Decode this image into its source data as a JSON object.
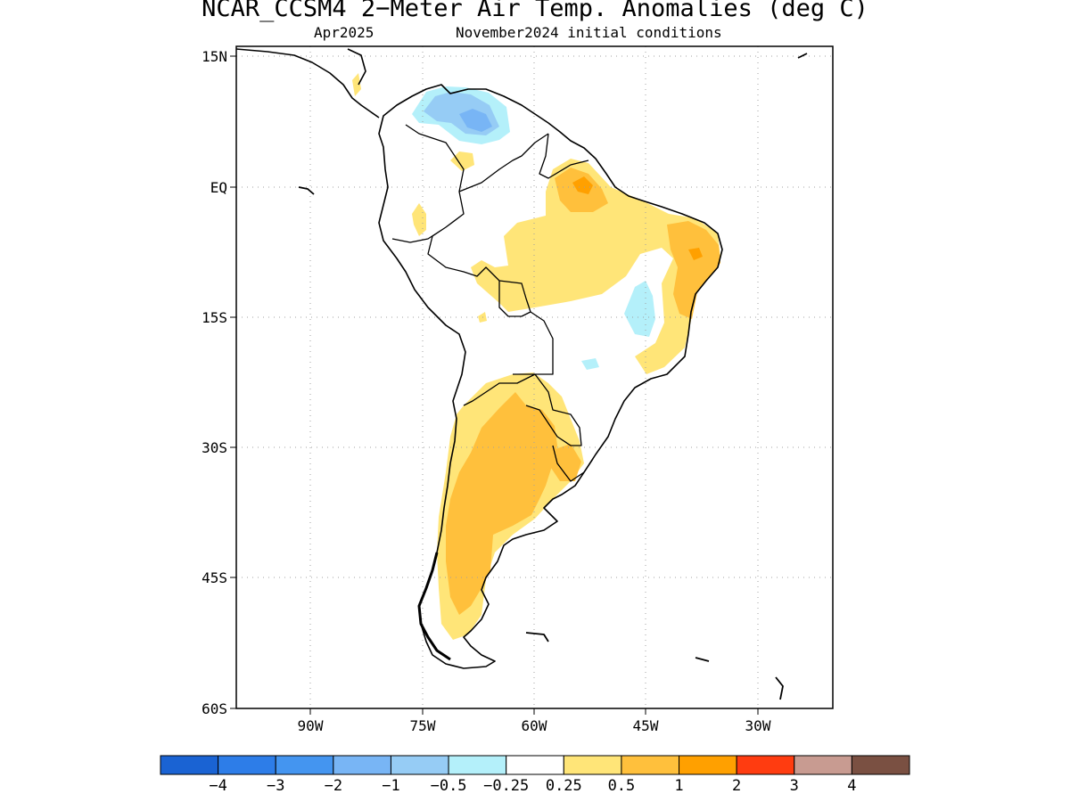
{
  "title": "NCAR_CCSM4 2−Meter Air Temp. Anomalies (deg C)",
  "subtitle": {
    "valid_month": "Apr2025",
    "initial_conditions": "November2024 initial conditions"
  },
  "map": {
    "region": "South America",
    "projection": "cylindrical",
    "lon_range": [
      -97,
      -30
    ],
    "lat_range": [
      -60,
      15
    ],
    "grid": true,
    "lat_ticks": [
      "15N",
      "EQ",
      "15S",
      "30S",
      "45S",
      "60S"
    ],
    "lon_ticks": [
      "90W",
      "75W",
      "60W",
      "45W",
      "30W"
    ]
  },
  "colorbar": {
    "colors": [
      "#1a63d3",
      "#2d7de8",
      "#4495f0",
      "#78b5f5",
      "#96ccf5",
      "#b4f0fa",
      "#ffffff",
      "#ffe578",
      "#ffc03c",
      "#ffa000",
      "#ff3c10",
      "#c89b91",
      "#7a5042"
    ],
    "labels": [
      "−4",
      "−3",
      "−2",
      "−1",
      "−0.5",
      "−0.25",
      "0.25",
      "0.5",
      "1",
      "2",
      "3",
      "4"
    ]
  },
  "colors": {
    "coastline": "#000000",
    "grid": "#a0a0a0"
  }
}
